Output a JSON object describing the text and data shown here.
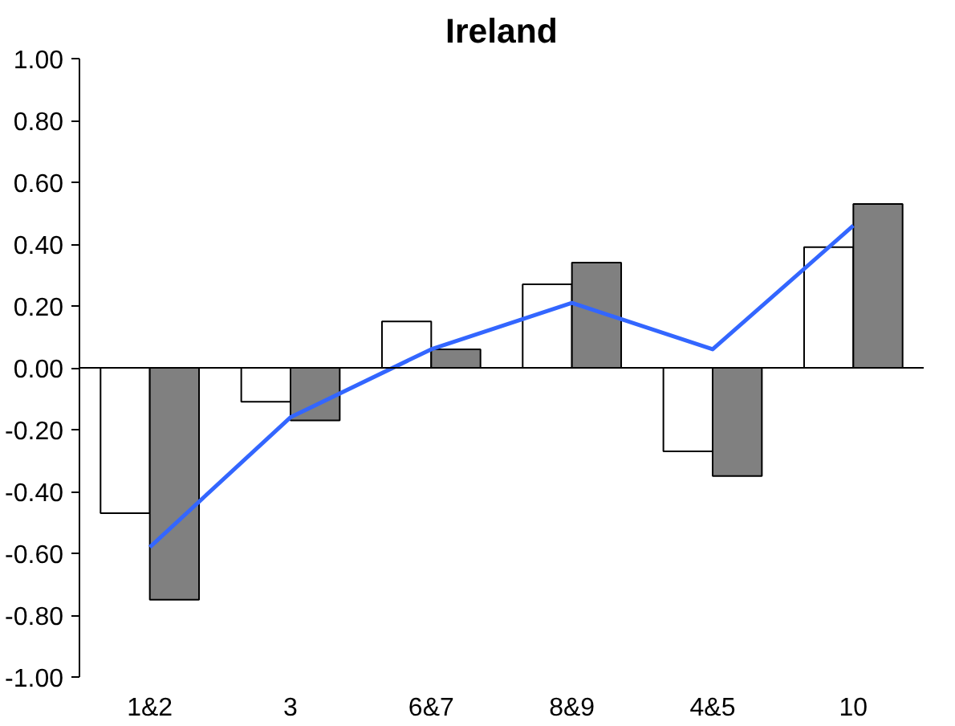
{
  "chart_data": {
    "type": "bar",
    "title": "Ireland",
    "categories": [
      "1&2",
      "3",
      "6&7",
      "8&9",
      "4&5",
      "10"
    ],
    "series": [
      {
        "color": "#ffffff",
        "values": [
          -0.47,
          -0.11,
          0.15,
          0.27,
          -0.27,
          0.39
        ]
      },
      {
        "color": "#808080",
        "values": [
          -0.75,
          -0.17,
          0.06,
          0.34,
          -0.35,
          0.53
        ]
      },
      {
        "type": "line",
        "color": "#3366ff",
        "values": [
          -0.58,
          -0.16,
          0.06,
          0.21,
          0.06,
          0.46
        ]
      }
    ],
    "ylim": [
      -1,
      1
    ],
    "yticks": [
      {
        "value": -1,
        "label": "-1.00"
      },
      {
        "value": -0.8,
        "label": "-0.80"
      },
      {
        "value": -0.6,
        "label": "-0.60"
      },
      {
        "value": -0.4,
        "label": "-0.40"
      },
      {
        "value": -0.2,
        "label": "-0.20"
      },
      {
        "value": 0,
        "label": "0.00"
      },
      {
        "value": 0.2,
        "label": "0.20"
      },
      {
        "value": 0.4,
        "label": "0.40"
      },
      {
        "value": 0.6,
        "label": "0.60"
      },
      {
        "value": 0.8,
        "label": "0.80"
      },
      {
        "value": 1,
        "label": "1.00"
      }
    ],
    "ref_lines": [
      {
        "axis": "y",
        "value": 0,
        "color": "#000000"
      }
    ],
    "grid": false
  }
}
